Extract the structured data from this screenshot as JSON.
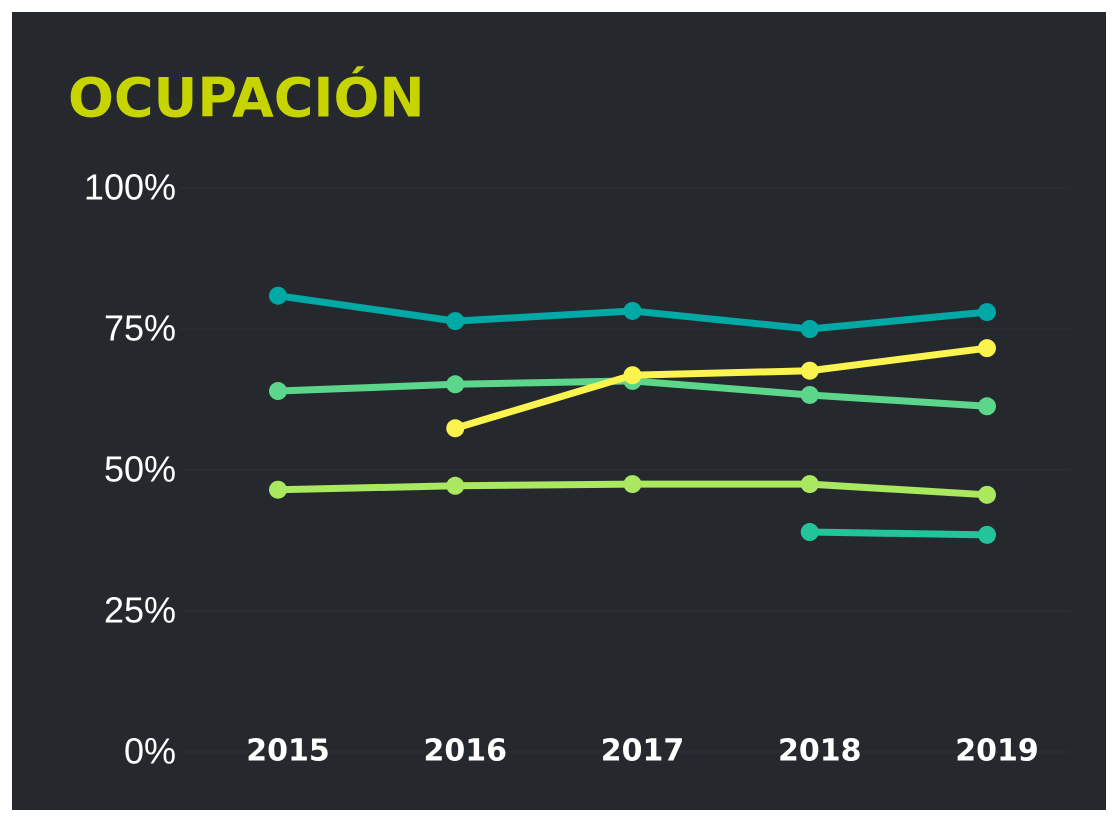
{
  "chart_data": {
    "type": "line",
    "title": "OCUPACIÓN",
    "categories": [
      "2015",
      "2016",
      "2017",
      "2018",
      "2019"
    ],
    "series": [
      {
        "color": "#00a9a5",
        "values": [
          80.9,
          76.4,
          78.2,
          75.0,
          78.0
        ]
      },
      {
        "color": "#5cd68a",
        "values": [
          64.0,
          65.2,
          65.8,
          63.3,
          61.3
        ]
      },
      {
        "color": "#a9e85f",
        "values": [
          46.5,
          47.2,
          47.5,
          47.5,
          45.6
        ]
      },
      {
        "color": "#22c49c",
        "values": [
          null,
          null,
          null,
          39.0,
          38.5
        ]
      },
      {
        "color": "#fbf34e",
        "values": [
          null,
          57.4,
          66.8,
          67.6,
          71.6
        ]
      }
    ],
    "ylim": [
      0,
      100
    ],
    "yticks": [
      {
        "value": 0,
        "label": "0%"
      },
      {
        "value": 25,
        "label": "25%"
      },
      {
        "value": 50,
        "label": "50%"
      },
      {
        "value": 75,
        "label": "75%"
      },
      {
        "value": 100,
        "label": "100%"
      }
    ],
    "grid": true
  }
}
